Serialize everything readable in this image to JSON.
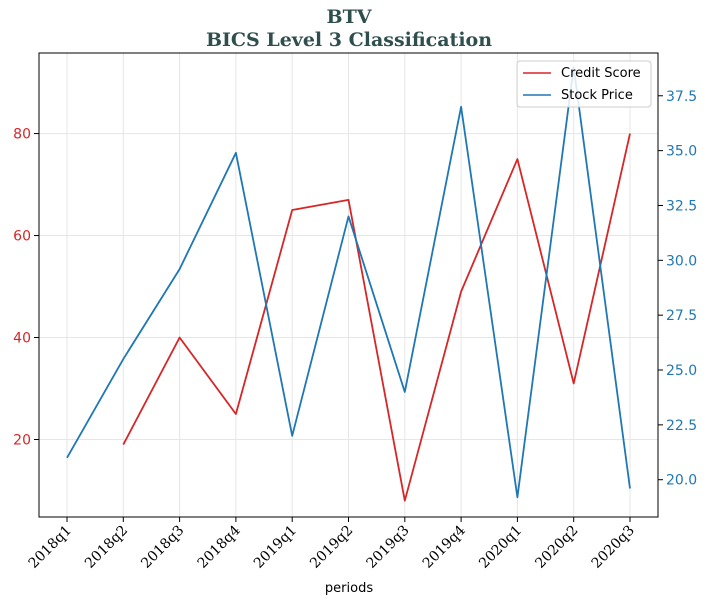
{
  "chart_data": {
    "type": "line",
    "title_line1": "BTV",
    "title_line2": "BICS Level 3 Classification",
    "xlabel": "periods",
    "categories": [
      "2018q1",
      "2018q2",
      "2018q3",
      "2018q4",
      "2019q1",
      "2019q2",
      "2019q3",
      "2019q4",
      "2020q1",
      "2020q2",
      "2020q3"
    ],
    "series": [
      {
        "name": "Credit Score",
        "axis": "left",
        "color": "#d62728",
        "values": [
          null,
          19,
          40,
          25,
          65,
          67,
          8,
          49,
          75,
          31,
          80
        ]
      },
      {
        "name": "Stock Price",
        "axis": "right",
        "color": "#1f77b4",
        "values": [
          21.0,
          25.5,
          29.6,
          34.9,
          22.0,
          32.0,
          24.0,
          37.0,
          19.2,
          38.8,
          19.6
        ]
      }
    ],
    "left_axis": {
      "ylim": [
        4.8,
        95.8
      ],
      "ticks": [
        20,
        40,
        60,
        80
      ]
    },
    "right_axis": {
      "ylim": [
        18.3,
        39.45
      ],
      "ticks": [
        "20.0",
        "22.5",
        "25.0",
        "27.5",
        "30.0",
        "32.5",
        "35.0",
        "37.5"
      ]
    },
    "grid": true,
    "legend_position": "top-right"
  }
}
